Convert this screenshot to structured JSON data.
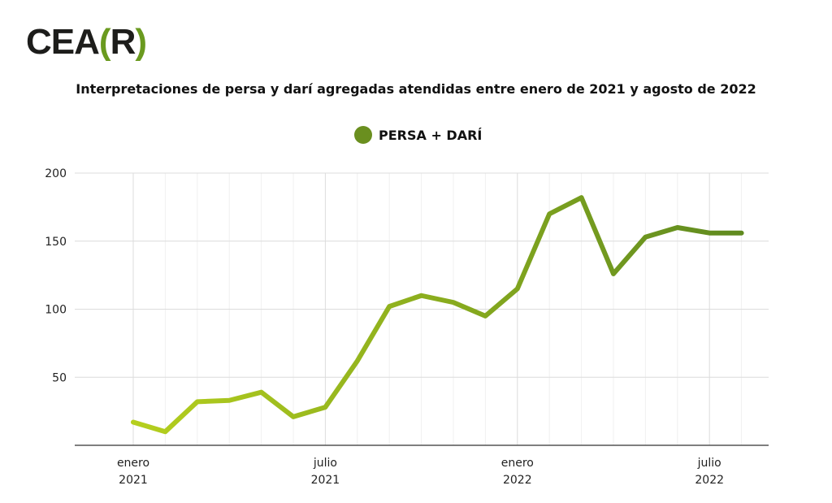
{
  "logo": {
    "text": "CEA(R)",
    "main": "CEA",
    "open": "(",
    "letter": "R",
    "close": ")"
  },
  "chart_data": {
    "type": "line",
    "title": "Interpretaciones de persa y darí agregadas atendidas entre enero de 2021 y agosto de 2022",
    "legend": [
      {
        "name": "PERSA + DARÍ",
        "color": "#6a8f1f"
      }
    ],
    "legend_placement": "top-center",
    "x": [
      "2021-01",
      "2021-02",
      "2021-03",
      "2021-04",
      "2021-05",
      "2021-06",
      "2021-07",
      "2021-08",
      "2021-09",
      "2021-10",
      "2021-11",
      "2021-12",
      "2022-01",
      "2022-02",
      "2022-03",
      "2022-04",
      "2022-05",
      "2022-06",
      "2022-07",
      "2022-08"
    ],
    "series": [
      {
        "name": "PERSA + DARÍ",
        "values": [
          17,
          10,
          32,
          33,
          39,
          21,
          28,
          62,
          102,
          110,
          105,
          95,
          115,
          170,
          182,
          126,
          153,
          160,
          156,
          156
        ]
      }
    ],
    "ylim": [
      0,
      200
    ],
    "yticks": [
      50,
      100,
      150,
      200
    ],
    "xticks": [
      {
        "index": 0,
        "line1": "enero",
        "line2": "2021"
      },
      {
        "index": 6,
        "line1": "julio",
        "line2": "2021"
      },
      {
        "index": 12,
        "line1": "enero",
        "line2": "2022"
      },
      {
        "index": 18,
        "line1": "julio",
        "line2": "2022"
      }
    ],
    "grid": true,
    "colors": {
      "start": "#b5cf1e",
      "end": "#5f8a1f"
    }
  }
}
